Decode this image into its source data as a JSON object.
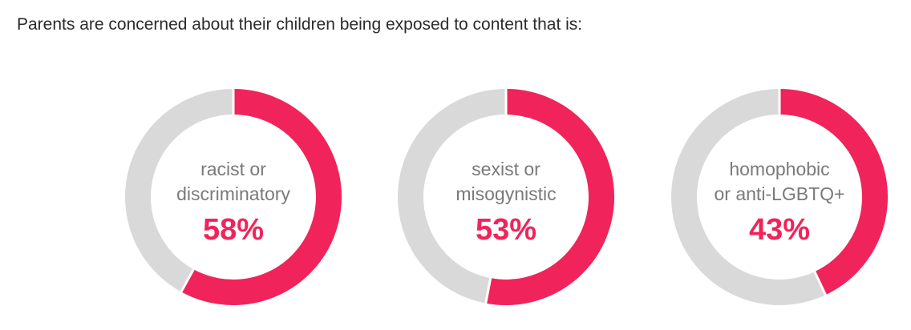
{
  "title": "Parents are concerned about their children being exposed to content that is:",
  "colors": {
    "accent": "#f0245a",
    "track": "#d9d9d9",
    "label": "#7a7a7a"
  },
  "chart_data": {
    "type": "pie",
    "title": "Parents are concerned about their children being exposed to content that is:",
    "items": [
      {
        "label_lines": [
          "racist or",
          "discriminatory"
        ],
        "value": 58,
        "display": "58%"
      },
      {
        "label_lines": [
          "sexist or",
          "misogynistic"
        ],
        "value": 53,
        "display": "53%"
      },
      {
        "label_lines": [
          "homophobic",
          "or anti-LGBTQ+"
        ],
        "value": 43,
        "display": "43%"
      }
    ]
  }
}
